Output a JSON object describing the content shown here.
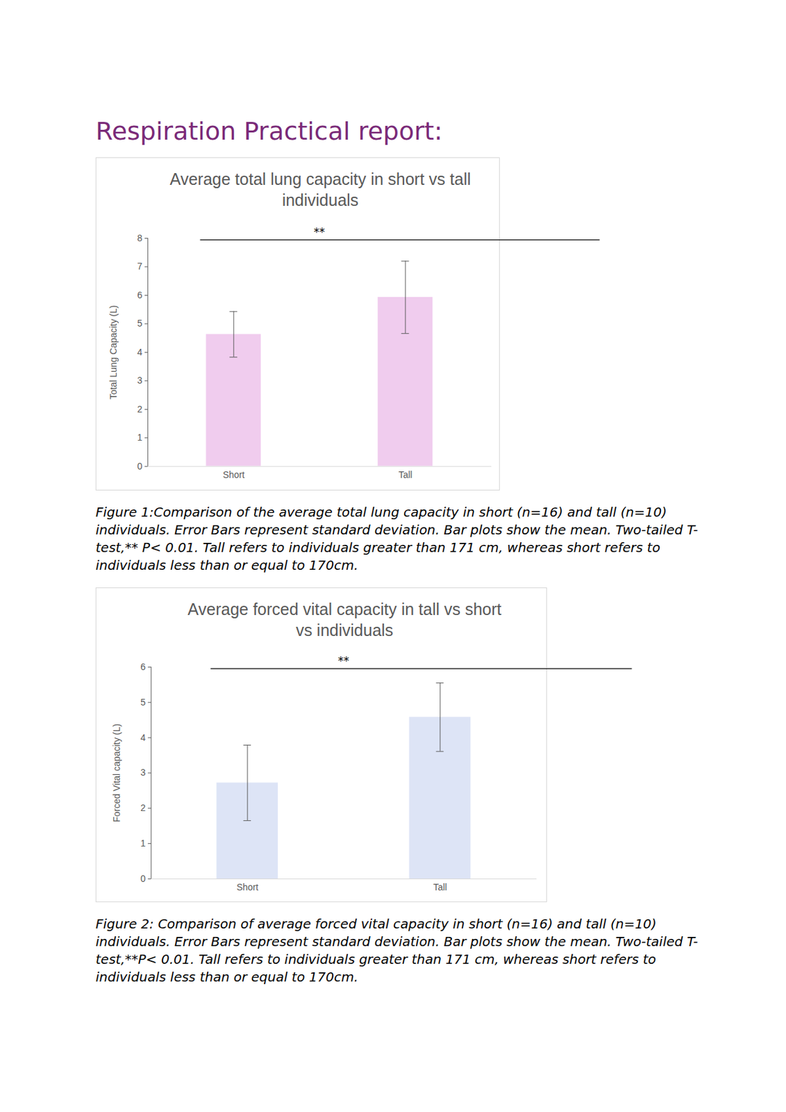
{
  "title": "Respiration Practical report:",
  "chart_data": [
    {
      "type": "bar",
      "title": "Average total lung capacity in short vs tall individuals",
      "categories": [
        "Short",
        "Tall"
      ],
      "values": [
        4.63,
        5.93
      ],
      "error_bars": [
        0.8,
        1.27
      ],
      "color": "#f0ccee",
      "ylabel": "Total Lung Capacity (L)",
      "ylim": [
        0,
        8
      ],
      "yticks": [
        0,
        1,
        2,
        3,
        4,
        5,
        6,
        7,
        8
      ],
      "annotation": "**",
      "caption": "Figure 1:Comparison of the average total lung capacity in short (n=16) and tall (n=10) individuals. Error Bars represent standard deviation. Bar plots show the mean. Two-tailed T-test,** P< 0.01. Tall refers to individuals greater than 171 cm, whereas short refers to individuals less than or equal to 170cm."
    },
    {
      "type": "bar",
      "title": "Average forced vital capacity in tall vs short vs individuals",
      "categories": [
        "Short",
        "Tall"
      ],
      "values": [
        2.72,
        4.58
      ],
      "error_bars": [
        1.07,
        0.97
      ],
      "color": "#dde4f6",
      "ylabel": "Forced Vital capacity (L)",
      "ylim": [
        0,
        6
      ],
      "yticks": [
        0,
        1,
        2,
        3,
        4,
        5,
        6
      ],
      "annotation": "**",
      "caption": "Figure 2: Comparison of average forced vital capacity in short (n=16) and tall (n=10)  individuals. Error Bars represent standard deviation. Bar plots show the mean. Two-tailed T-test,**P< 0.01. Tall refers to individuals greater than 171 cm, whereas short refers to individuals less than or equal to 170cm."
    }
  ]
}
